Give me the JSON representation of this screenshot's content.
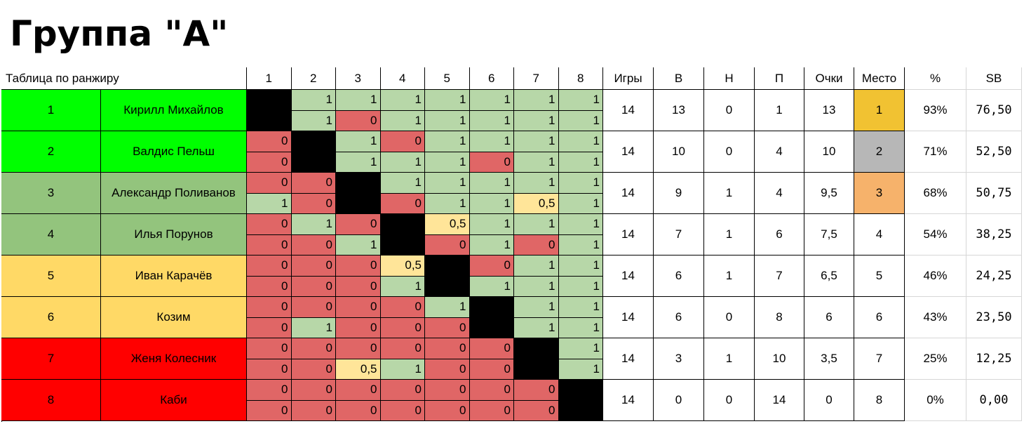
{
  "title": "Группа \"А\"",
  "header": {
    "ranking_label": "Таблица по ранжиру",
    "cols": [
      "1",
      "2",
      "3",
      "4",
      "5",
      "6",
      "7",
      "8"
    ],
    "games": "Игры",
    "wins": "В",
    "draws": "Н",
    "losses": "П",
    "points": "Очки",
    "place": "Место",
    "percent": "%",
    "sb": "SB"
  },
  "colors": {
    "green_bright": "#00ff00",
    "green_dark": "#93c47d",
    "yellow": "#ffd966",
    "red": "#ff0000",
    "cell_win": "#b7d7a8",
    "cell_loss": "#e06666",
    "cell_draw": "#ffe599",
    "self": "#000000",
    "place_gold": "#f1c232",
    "place_silver": "#b7b7b7",
    "place_bronze": "#f6b26b"
  },
  "players": [
    {
      "rank": "1",
      "name": "Кирилл Михайлов",
      "color": "#00ff00",
      "games": "14",
      "wins": "13",
      "draws": "0",
      "losses": "1",
      "points": "13",
      "place": "1",
      "place_color": "#f1c232",
      "percent": "93%",
      "sb": "76,50",
      "r1": [
        "",
        "1",
        "1",
        "1",
        "1",
        "1",
        "1",
        "1"
      ],
      "r2": [
        "",
        "1",
        "0",
        "1",
        "1",
        "1",
        "1",
        "1"
      ]
    },
    {
      "rank": "2",
      "name": "Валдис Пельш",
      "color": "#00ff00",
      "games": "14",
      "wins": "10",
      "draws": "0",
      "losses": "4",
      "points": "10",
      "place": "2",
      "place_color": "#b7b7b7",
      "percent": "71%",
      "sb": "52,50",
      "r1": [
        "0",
        "",
        "1",
        "0",
        "1",
        "1",
        "1",
        "1"
      ],
      "r2": [
        "0",
        "",
        "1",
        "1",
        "1",
        "0",
        "1",
        "1"
      ]
    },
    {
      "rank": "3",
      "name": "Александр Поливанов",
      "color": "#93c47d",
      "games": "14",
      "wins": "9",
      "draws": "1",
      "losses": "4",
      "points": "9,5",
      "place": "3",
      "place_color": "#f6b26b",
      "percent": "68%",
      "sb": "50,75",
      "r1": [
        "0",
        "0",
        "",
        "1",
        "1",
        "1",
        "1",
        "1"
      ],
      "r2": [
        "1",
        "0",
        "",
        "0",
        "1",
        "1",
        "0,5",
        "1"
      ]
    },
    {
      "rank": "4",
      "name": "Илья Порунов",
      "color": "#93c47d",
      "games": "14",
      "wins": "7",
      "draws": "1",
      "losses": "6",
      "points": "7,5",
      "place": "4",
      "place_color": "#ffffff",
      "percent": "54%",
      "sb": "38,25",
      "r1": [
        "0",
        "1",
        "0",
        "",
        "0,5",
        "1",
        "1",
        "1"
      ],
      "r2": [
        "0",
        "0",
        "1",
        "",
        "0",
        "1",
        "0",
        "1"
      ]
    },
    {
      "rank": "5",
      "name": "Иван Карачёв",
      "color": "#ffd966",
      "games": "14",
      "wins": "6",
      "draws": "1",
      "losses": "7",
      "points": "6,5",
      "place": "5",
      "place_color": "#ffffff",
      "percent": "46%",
      "sb": "24,25",
      "r1": [
        "0",
        "0",
        "0",
        "0,5",
        "",
        "0",
        "1",
        "1"
      ],
      "r2": [
        "0",
        "0",
        "0",
        "1",
        "",
        "1",
        "1",
        "1"
      ]
    },
    {
      "rank": "6",
      "name": "Козим",
      "color": "#ffd966",
      "games": "14",
      "wins": "6",
      "draws": "0",
      "losses": "8",
      "points": "6",
      "place": "6",
      "place_color": "#ffffff",
      "percent": "43%",
      "sb": "23,50",
      "r1": [
        "0",
        "0",
        "0",
        "0",
        "1",
        "",
        "1",
        "1"
      ],
      "r2": [
        "0",
        "1",
        "0",
        "0",
        "0",
        "",
        "1",
        "1"
      ]
    },
    {
      "rank": "7",
      "name": "Женя Колесник",
      "color": "#ff0000",
      "games": "14",
      "wins": "3",
      "draws": "1",
      "losses": "10",
      "points": "3,5",
      "place": "7",
      "place_color": "#ffffff",
      "percent": "25%",
      "sb": "12,25",
      "r1": [
        "0",
        "0",
        "0",
        "0",
        "0",
        "0",
        "",
        "1"
      ],
      "r2": [
        "0",
        "0",
        "0,5",
        "1",
        "0",
        "0",
        "",
        "1"
      ]
    },
    {
      "rank": "8",
      "name": "Каби",
      "color": "#ff0000",
      "games": "14",
      "wins": "0",
      "draws": "0",
      "losses": "14",
      "points": "0",
      "place": "8",
      "place_color": "#ffffff",
      "percent": "0%",
      "sb": "0,00",
      "r1": [
        "0",
        "0",
        "0",
        "0",
        "0",
        "0",
        "0",
        ""
      ],
      "r2": [
        "0",
        "0",
        "0",
        "0",
        "0",
        "0",
        "0",
        ""
      ]
    }
  ]
}
